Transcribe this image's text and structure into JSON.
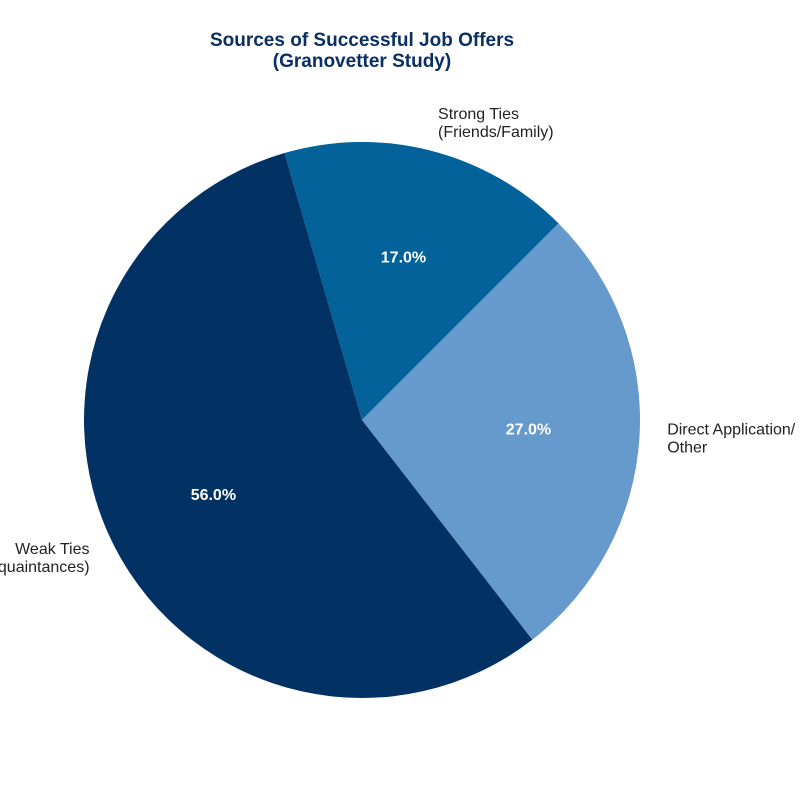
{
  "chart_data": {
    "type": "pie",
    "title_lines": [
      "Sources of Successful Job Offers",
      "(Granovetter Study)"
    ],
    "title_color": "#0a2f63",
    "label_color": "#222222",
    "pct_color": "#ffffff",
    "slices": [
      {
        "name": "Strong Ties (Friends/Family)",
        "label_lines": [
          "Strong Ties",
          "(Friends/Family)"
        ],
        "value": 17.0,
        "pct_label": "17.0%",
        "color": "#026299"
      },
      {
        "name": "Weak Ties (Acquaintances)",
        "label_lines": [
          "Weak Ties",
          "(Acquaintances)"
        ],
        "value": 56.0,
        "pct_label": "56.0%",
        "color": "#023163"
      },
      {
        "name": "Direct Application/ Other",
        "label_lines": [
          "Direct Application/",
          "Other"
        ],
        "value": 27.0,
        "pct_label": "27.0%",
        "color": "#6699cc"
      }
    ]
  }
}
